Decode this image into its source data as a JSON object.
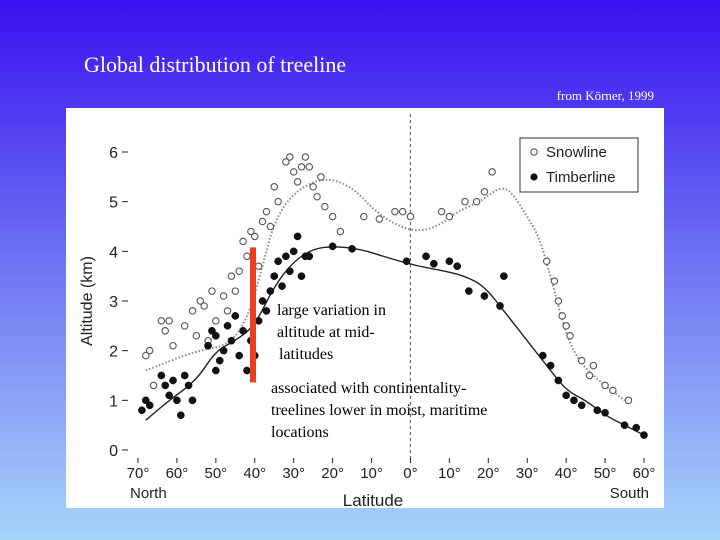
{
  "slide": {
    "title": "Global distribution of treeline",
    "credit": "from Körner, 1999"
  },
  "annotations": {
    "variation": [
      "large variation in",
      "altitude at mid-",
      "latitudes"
    ],
    "continentality": [
      "associated with continentality-",
      "treelines lower in moist, maritime",
      "locations"
    ]
  },
  "colors": {
    "highlight_bar": "#e8401c",
    "snow_marker": "#555555",
    "timber_marker": "#111111"
  },
  "chart_data": {
    "type": "scatter",
    "ylabel": "Altitude (km)",
    "xlabel": "Latitude",
    "x_end_labels": {
      "left": "North",
      "right": "South"
    },
    "ylim": [
      0,
      6.5
    ],
    "xlim": [
      -70,
      60
    ],
    "y_ticks": [
      "0",
      "1",
      "2",
      "3",
      "4",
      "5",
      "6"
    ],
    "x_ticks": [
      "70°",
      "60°",
      "50°",
      "40°",
      "30°",
      "20°",
      "10°",
      "0°",
      "10°",
      "20°",
      "30°",
      "40°",
      "50°",
      "60°"
    ],
    "legend": [
      "Snowline",
      "Timberline"
    ],
    "series": [
      {
        "name": "Snowline",
        "marker": "open-circle",
        "points": [
          [
            -68,
            1.9
          ],
          [
            -67,
            2.0
          ],
          [
            -66,
            1.3
          ],
          [
            -64,
            2.6
          ],
          [
            -63,
            2.4
          ],
          [
            -62,
            2.6
          ],
          [
            -61,
            2.1
          ],
          [
            -58,
            2.5
          ],
          [
            -56,
            2.8
          ],
          [
            -55,
            2.3
          ],
          [
            -54,
            3.0
          ],
          [
            -53,
            2.9
          ],
          [
            -52,
            2.2
          ],
          [
            -51,
            3.2
          ],
          [
            -50,
            2.6
          ],
          [
            -48,
            3.1
          ],
          [
            -47,
            2.8
          ],
          [
            -46,
            3.5
          ],
          [
            -45,
            3.2
          ],
          [
            -44,
            3.6
          ],
          [
            -43,
            4.2
          ],
          [
            -42,
            3.9
          ],
          [
            -41,
            4.4
          ],
          [
            -40,
            4.3
          ],
          [
            -39,
            3.7
          ],
          [
            -38,
            4.6
          ],
          [
            -37,
            4.8
          ],
          [
            -36,
            4.5
          ],
          [
            -35,
            5.3
          ],
          [
            -34,
            5.0
          ],
          [
            -32,
            5.8
          ],
          [
            -31,
            5.9
          ],
          [
            -30,
            5.6
          ],
          [
            -29,
            5.4
          ],
          [
            -28,
            5.7
          ],
          [
            -27,
            5.9
          ],
          [
            -26,
            5.7
          ],
          [
            -25,
            5.3
          ],
          [
            -24,
            5.1
          ],
          [
            -23,
            5.5
          ],
          [
            -22,
            4.9
          ],
          [
            -20,
            4.7
          ],
          [
            -18,
            4.4
          ],
          [
            -12,
            4.7
          ],
          [
            -8,
            4.65
          ],
          [
            -4,
            4.8
          ],
          [
            -2,
            4.8
          ],
          [
            0,
            4.7
          ],
          [
            8,
            4.8
          ],
          [
            10,
            4.7
          ],
          [
            14,
            5.0
          ],
          [
            17,
            5.0
          ],
          [
            19,
            5.2
          ],
          [
            21,
            5.6
          ],
          [
            35,
            3.8
          ],
          [
            37,
            3.4
          ],
          [
            38,
            3.0
          ],
          [
            39,
            2.7
          ],
          [
            40,
            2.5
          ],
          [
            41,
            2.3
          ],
          [
            44,
            1.8
          ],
          [
            46,
            1.5
          ],
          [
            47,
            1.7
          ],
          [
            50,
            1.3
          ],
          [
            52,
            1.2
          ],
          [
            56,
            1.0
          ]
        ]
      },
      {
        "name": "Timberline",
        "marker": "filled-circle",
        "points": [
          [
            -69,
            0.8
          ],
          [
            -68,
            1.0
          ],
          [
            -67,
            0.9
          ],
          [
            -64,
            1.5
          ],
          [
            -63,
            1.3
          ],
          [
            -62,
            1.1
          ],
          [
            -61,
            1.4
          ],
          [
            -60,
            1.0
          ],
          [
            -59,
            0.7
          ],
          [
            -58,
            1.5
          ],
          [
            -57,
            1.3
          ],
          [
            -56,
            1.0
          ],
          [
            -52,
            2.1
          ],
          [
            -51,
            2.4
          ],
          [
            -50,
            2.3
          ],
          [
            -49,
            1.8
          ],
          [
            -48,
            2.0
          ],
          [
            -47,
            2.5
          ],
          [
            -46,
            2.2
          ],
          [
            -45,
            2.7
          ],
          [
            -44,
            1.9
          ],
          [
            -43,
            2.4
          ],
          [
            -42,
            1.6
          ],
          [
            -41,
            2.2
          ],
          [
            -40,
            1.9
          ],
          [
            -39,
            2.6
          ],
          [
            -38,
            3.0
          ],
          [
            -37,
            2.8
          ],
          [
            -36,
            3.2
          ],
          [
            -35,
            3.5
          ],
          [
            -34,
            3.8
          ],
          [
            -33,
            3.3
          ],
          [
            -32,
            3.9
          ],
          [
            -31,
            3.6
          ],
          [
            -30,
            4.0
          ],
          [
            -29,
            4.3
          ],
          [
            -28,
            3.5
          ],
          [
            -27,
            3.9
          ],
          [
            -26,
            3.9
          ],
          [
            -50,
            1.6
          ],
          [
            -20,
            4.1
          ],
          [
            -15,
            4.05
          ],
          [
            -1,
            3.8
          ],
          [
            4,
            3.9
          ],
          [
            6,
            3.75
          ],
          [
            10,
            3.8
          ],
          [
            12,
            3.7
          ],
          [
            15,
            3.2
          ],
          [
            19,
            3.1
          ],
          [
            23,
            2.9
          ],
          [
            24,
            3.5
          ],
          [
            34,
            1.9
          ],
          [
            36,
            1.7
          ],
          [
            38,
            1.4
          ],
          [
            40,
            1.1
          ],
          [
            42,
            1.0
          ],
          [
            44,
            0.9
          ],
          [
            48,
            0.8
          ],
          [
            50,
            0.75
          ],
          [
            55,
            0.5
          ],
          [
            58,
            0.45
          ],
          [
            60,
            0.3
          ]
        ]
      }
    ],
    "trend_lines": [
      {
        "name": "Snowline trend",
        "style": "dotted",
        "points": [
          [
            -68,
            1.6
          ],
          [
            -55,
            2.0
          ],
          [
            -47,
            2.1
          ],
          [
            -42,
            2.6
          ],
          [
            -38,
            3.7
          ],
          [
            -35,
            4.6
          ],
          [
            -30,
            5.2
          ],
          [
            -22,
            5.5
          ],
          [
            -15,
            5.3
          ],
          [
            -9,
            4.8
          ],
          [
            -3,
            4.5
          ],
          [
            2,
            4.4
          ],
          [
            7,
            4.5
          ],
          [
            12,
            4.8
          ],
          [
            18,
            5.0
          ],
          [
            23,
            5.3
          ],
          [
            26,
            5.2
          ],
          [
            30,
            4.7
          ],
          [
            33,
            4.3
          ],
          [
            36,
            3.5
          ],
          [
            40,
            2.3
          ],
          [
            44,
            1.7
          ],
          [
            50,
            1.3
          ],
          [
            55,
            1.0
          ]
        ]
      },
      {
        "name": "Timberline trend",
        "style": "solid",
        "points": [
          [
            -68,
            0.6
          ],
          [
            -62,
            1.0
          ],
          [
            -55,
            1.4
          ],
          [
            -50,
            2.0
          ],
          [
            -45,
            2.2
          ],
          [
            -40,
            2.5
          ],
          [
            -35,
            3.3
          ],
          [
            -30,
            3.8
          ],
          [
            -25,
            4.05
          ],
          [
            -20,
            4.1
          ],
          [
            -13,
            4.05
          ],
          [
            -5,
            3.85
          ],
          [
            2,
            3.7
          ],
          [
            9,
            3.6
          ],
          [
            14,
            3.5
          ],
          [
            19,
            3.3
          ],
          [
            25,
            2.7
          ],
          [
            30,
            2.2
          ],
          [
            35,
            1.7
          ],
          [
            40,
            1.2
          ],
          [
            45,
            1.0
          ],
          [
            50,
            0.7
          ],
          [
            55,
            0.5
          ],
          [
            60,
            0.3
          ]
        ]
      }
    ],
    "highlight": {
      "x": -40,
      "y_range": [
        1.4,
        4.0
      ]
    }
  }
}
